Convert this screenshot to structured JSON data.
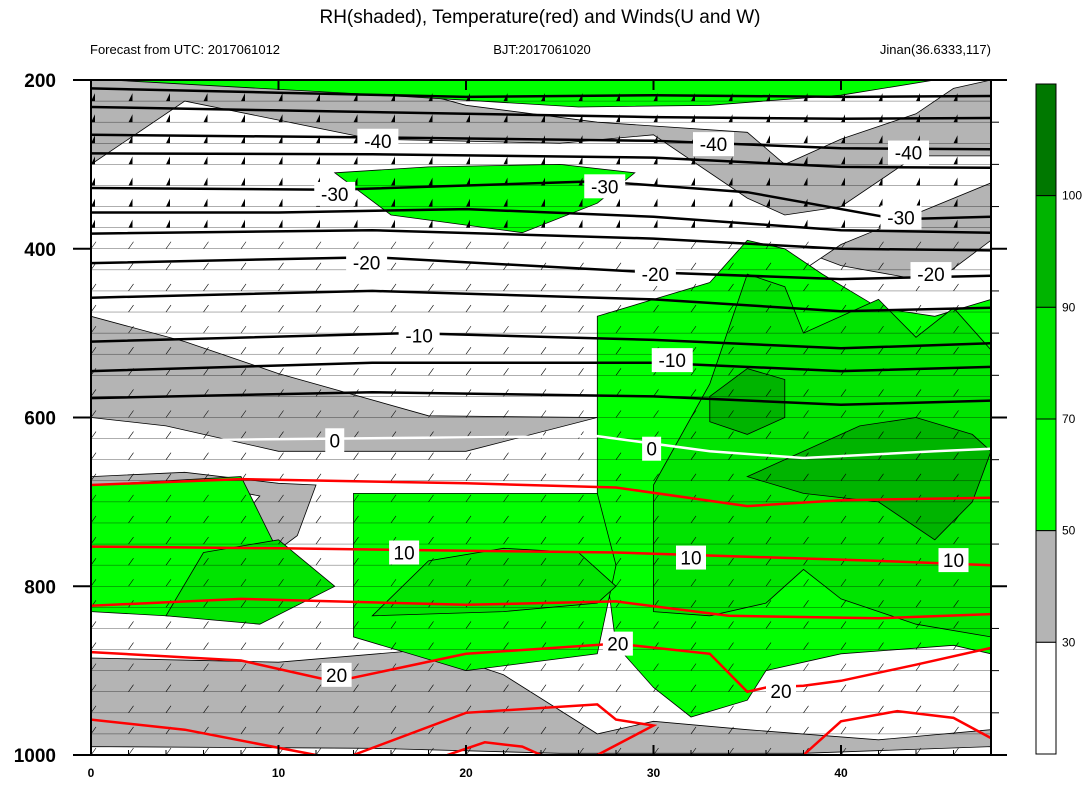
{
  "chart_data": {
    "type": "contour",
    "title": "RH(shaded), Temperature(red) and Winds(U and W)",
    "subtitle_left": "Forecast from UTC: 2017061012",
    "subtitle_center": "BJT:2017061020",
    "subtitle_right": "Jinan(36.6333,117)",
    "x_axis": {
      "range": [
        0,
        48
      ],
      "ticks": [
        0,
        10,
        20,
        30,
        40
      ]
    },
    "y_axis": {
      "range": [
        1000,
        200
      ],
      "ticks": [
        200,
        400,
        600,
        800,
        1000
      ],
      "reversed": true
    },
    "colorbar": {
      "labels": [
        30,
        50,
        70,
        90,
        100
      ],
      "levels": [
        {
          "label_value": null,
          "color": "#ffffff"
        },
        {
          "label_value": 30,
          "color": "#b4b4b4"
        },
        {
          "label_value": 50,
          "color": "#00ff00"
        },
        {
          "label_value": 70,
          "color": "#00e400"
        },
        {
          "label_value": 90,
          "color": "#00b400"
        },
        {
          "label_value": 100,
          "color": "#007800"
        }
      ]
    },
    "temperature_isotherm_labels": {
      "black": [
        {
          "text": "-40",
          "x": 15.3,
          "p": 272
        },
        {
          "text": "-40",
          "x": 33.2,
          "p": 276
        },
        {
          "text": "-40",
          "x": 43.6,
          "p": 286
        },
        {
          "text": "-30",
          "x": 13.0,
          "p": 335
        },
        {
          "text": "-30",
          "x": 27.4,
          "p": 326
        },
        {
          "text": "-30",
          "x": 43.2,
          "p": 363
        },
        {
          "text": "-20",
          "x": 14.7,
          "p": 416
        },
        {
          "text": "-20",
          "x": 30.1,
          "p": 430
        },
        {
          "text": "-20",
          "x": 44.8,
          "p": 430
        },
        {
          "text": "-10",
          "x": 17.5,
          "p": 503
        },
        {
          "text": "-10",
          "x": 31.0,
          "p": 532
        }
      ],
      "white": [
        {
          "text": "0",
          "x": 13.0,
          "p": 627
        },
        {
          "text": "0",
          "x": 29.9,
          "p": 637
        }
      ],
      "red": [
        {
          "text": "10",
          "x": 16.7,
          "p": 760
        },
        {
          "text": "10",
          "x": 32.0,
          "p": 766
        },
        {
          "text": "10",
          "x": 46.0,
          "p": 769
        },
        {
          "text": "20",
          "x": 13.1,
          "p": 905
        },
        {
          "text": "20",
          "x": 28.1,
          "p": 868
        },
        {
          "text": "20",
          "x": 36.8,
          "p": 924
        }
      ]
    },
    "isotherms": {
      "black": [
        [
          [
            0,
            210
          ],
          [
            10,
            215
          ],
          [
            20,
            220
          ],
          [
            30,
            218
          ],
          [
            40,
            220
          ],
          [
            48,
            219
          ]
        ],
        [
          [
            0,
            232
          ],
          [
            10,
            236
          ],
          [
            20,
            240
          ],
          [
            30,
            244
          ],
          [
            40,
            246
          ],
          [
            48,
            245
          ]
        ],
        [
          [
            0,
            265
          ],
          [
            15,
            268
          ],
          [
            30,
            272
          ],
          [
            40,
            281
          ],
          [
            48,
            282
          ]
        ],
        [
          [
            0,
            287
          ],
          [
            15,
            288
          ],
          [
            30,
            292
          ],
          [
            40,
            303
          ],
          [
            48,
            304
          ]
        ],
        [
          [
            0,
            328
          ],
          [
            13,
            330
          ],
          [
            27,
            320
          ],
          [
            35,
            333
          ],
          [
            43,
            365
          ],
          [
            48,
            362
          ]
        ],
        [
          [
            0,
            357
          ],
          [
            10,
            357
          ],
          [
            20,
            353
          ],
          [
            30,
            362
          ],
          [
            40,
            378
          ],
          [
            48,
            381
          ]
        ],
        [
          [
            0,
            382
          ],
          [
            15,
            378
          ],
          [
            30,
            388
          ],
          [
            40,
            400
          ],
          [
            48,
            402
          ]
        ],
        [
          [
            0,
            417
          ],
          [
            15,
            410
          ],
          [
            30,
            428
          ],
          [
            40,
            436
          ],
          [
            48,
            432
          ]
        ],
        [
          [
            0,
            458
          ],
          [
            15,
            450
          ],
          [
            30,
            460
          ],
          [
            40,
            474
          ],
          [
            48,
            470
          ]
        ],
        [
          [
            0,
            510
          ],
          [
            17,
            500
          ],
          [
            30,
            508
          ],
          [
            40,
            518
          ],
          [
            48,
            512
          ]
        ],
        [
          [
            0,
            545
          ],
          [
            15,
            535
          ],
          [
            30,
            535
          ],
          [
            40,
            545
          ],
          [
            48,
            540
          ]
        ],
        [
          [
            0,
            577
          ],
          [
            15,
            570
          ],
          [
            30,
            575
          ],
          [
            40,
            585
          ],
          [
            48,
            580
          ]
        ]
      ],
      "white": [
        [
          0,
          628
        ],
        [
          13,
          625
        ],
        [
          27,
          622
        ],
        [
          33,
          640
        ],
        [
          38,
          648
        ],
        [
          45,
          640
        ],
        [
          48,
          637
        ]
      ],
      "red": [
        [
          [
            0,
            680
          ],
          [
            8,
            673
          ],
          [
            20,
            678
          ],
          [
            28,
            683
          ],
          [
            35,
            705
          ],
          [
            40,
            698
          ],
          [
            48,
            695
          ]
        ],
        [
          [
            0,
            753
          ],
          [
            10,
            755
          ],
          [
            20,
            758
          ],
          [
            28,
            760
          ],
          [
            35,
            765
          ],
          [
            42,
            770
          ],
          [
            48,
            775
          ]
        ],
        [
          [
            0,
            823
          ],
          [
            8,
            815
          ],
          [
            20,
            822
          ],
          [
            28,
            818
          ],
          [
            34,
            835
          ],
          [
            42,
            838
          ],
          [
            48,
            833
          ]
        ],
        [
          [
            0,
            878
          ],
          [
            8,
            888
          ],
          [
            13,
            913
          ],
          [
            20,
            880
          ],
          [
            28,
            868
          ],
          [
            33,
            880
          ],
          [
            35,
            925
          ],
          [
            36,
            920
          ],
          [
            38,
            918
          ],
          [
            40,
            912
          ],
          [
            44,
            893
          ],
          [
            48,
            873
          ]
        ],
        [
          [
            0,
            958
          ],
          [
            5,
            970
          ],
          [
            12,
            1000
          ]
        ],
        [
          [
            14,
            1000
          ],
          [
            20,
            950
          ],
          [
            27,
            940
          ],
          [
            28,
            958
          ],
          [
            30,
            965
          ],
          [
            27,
            1000
          ]
        ],
        [
          [
            19,
            1000
          ],
          [
            21,
            985
          ],
          [
            23,
            990
          ],
          [
            24,
            1000
          ]
        ],
        [
          [
            38,
            1000
          ],
          [
            40,
            960
          ],
          [
            43,
            948
          ],
          [
            46,
            956
          ],
          [
            48,
            980
          ]
        ]
      ]
    },
    "rh_shading": {
      "light_gray_regions": [
        [
          [
            0,
            200
          ],
          [
            15,
            200
          ],
          [
            20,
            230
          ],
          [
            27,
            250
          ],
          [
            35,
            262
          ],
          [
            37,
            300
          ],
          [
            40,
            270
          ],
          [
            44,
            240
          ],
          [
            46,
            210
          ],
          [
            48,
            200
          ],
          [
            48,
            390
          ],
          [
            45,
            440
          ],
          [
            40,
            420
          ],
          [
            37,
            395
          ],
          [
            33,
            430
          ],
          [
            30,
            455
          ],
          [
            27,
            545
          ],
          [
            27,
            600
          ],
          [
            20,
            640
          ],
          [
            10,
            640
          ],
          [
            4,
            610
          ],
          [
            0,
            600
          ]
        ],
        [
          [
            0,
            670
          ],
          [
            5,
            665
          ],
          [
            10,
            678
          ],
          [
            12,
            680
          ],
          [
            11,
            740
          ],
          [
            8,
            790
          ],
          [
            5,
            810
          ],
          [
            0,
            808
          ]
        ],
        [
          [
            0,
            885
          ],
          [
            10,
            890
          ],
          [
            18,
            875
          ],
          [
            22,
            905
          ],
          [
            27,
            975
          ],
          [
            30,
            960
          ],
          [
            35,
            970
          ],
          [
            42,
            982
          ],
          [
            48,
            970
          ],
          [
            48,
            1000
          ],
          [
            0,
            1000
          ]
        ]
      ],
      "white_regions": [
        [
          [
            0,
            300
          ],
          [
            5,
            225
          ],
          [
            15,
            270
          ],
          [
            25,
            275
          ],
          [
            30,
            265
          ],
          [
            35,
            340
          ],
          [
            37,
            360
          ],
          [
            40,
            350
          ],
          [
            44,
            290
          ],
          [
            48,
            290
          ],
          [
            48,
            322
          ],
          [
            40,
            395
          ],
          [
            37,
            440
          ],
          [
            33,
            470
          ],
          [
            30,
            545
          ],
          [
            27,
            600
          ],
          [
            18,
            598
          ],
          [
            10,
            548
          ],
          [
            5,
            510
          ],
          [
            0,
            480
          ]
        ],
        [
          [
            2,
            686
          ],
          [
            6,
            680
          ],
          [
            9,
            693
          ],
          [
            7,
            745
          ],
          [
            4,
            770
          ],
          [
            1,
            765
          ]
        ],
        [
          [
            0,
            990
          ],
          [
            15,
            992
          ],
          [
            25,
            998
          ],
          [
            38,
            998
          ],
          [
            48,
            990
          ],
          [
            48,
            1000
          ],
          [
            0,
            1000
          ]
        ]
      ],
      "green_regions": [
        [
          [
            1,
            200
          ],
          [
            14,
            216
          ],
          [
            26,
            232
          ],
          [
            33,
            230
          ],
          [
            40,
            218
          ],
          [
            45,
            200
          ]
        ],
        [
          [
            13,
            310
          ],
          [
            18,
            303
          ],
          [
            25,
            300
          ],
          [
            29,
            310
          ],
          [
            27,
            346
          ],
          [
            23,
            381
          ],
          [
            16,
            360
          ]
        ],
        [
          [
            27,
            480
          ],
          [
            30,
            460
          ],
          [
            33,
            440
          ],
          [
            35,
            390
          ],
          [
            37,
            400
          ],
          [
            39,
            430
          ],
          [
            42,
            470
          ],
          [
            45,
            480
          ],
          [
            48,
            460
          ],
          [
            48,
            880
          ],
          [
            46,
            870
          ],
          [
            40,
            880
          ],
          [
            36,
            900
          ],
          [
            35,
            935
          ],
          [
            32,
            955
          ],
          [
            30,
            920
          ],
          [
            28,
            870
          ],
          [
            27,
            700
          ]
        ],
        [
          [
            0,
            680
          ],
          [
            8,
            670
          ],
          [
            10,
            760
          ],
          [
            8,
            840
          ],
          [
            0,
            830
          ]
        ],
        [
          [
            14,
            690
          ],
          [
            27,
            690
          ],
          [
            28,
            775
          ],
          [
            27,
            880
          ],
          [
            20,
            900
          ],
          [
            14,
            860
          ]
        ]
      ],
      "mid_green_regions": [
        [
          [
            30,
            680
          ],
          [
            33,
            560
          ],
          [
            35,
            430
          ],
          [
            37,
            445
          ],
          [
            38,
            500
          ],
          [
            42,
            460
          ],
          [
            44,
            505
          ],
          [
            46,
            470
          ],
          [
            48,
            520
          ],
          [
            48,
            860
          ],
          [
            44,
            845
          ],
          [
            40,
            815
          ],
          [
            38,
            780
          ],
          [
            36,
            820
          ],
          [
            33,
            835
          ],
          [
            30,
            830
          ]
        ],
        [
          [
            6,
            760
          ],
          [
            10,
            745
          ],
          [
            13,
            800
          ],
          [
            9,
            845
          ],
          [
            4,
            835
          ]
        ],
        [
          [
            15,
            835
          ],
          [
            18,
            770
          ],
          [
            22,
            755
          ],
          [
            26,
            760
          ],
          [
            28,
            800
          ],
          [
            27,
            820
          ],
          [
            22,
            830
          ]
        ]
      ],
      "dark_green_regions": [
        [
          [
            33,
            575
          ],
          [
            35,
            542
          ],
          [
            37,
            555
          ],
          [
            37,
            600
          ],
          [
            35,
            620
          ],
          [
            33,
            605
          ]
        ],
        [
          [
            35,
            670
          ],
          [
            38,
            640
          ],
          [
            41,
            610
          ],
          [
            44,
            600
          ],
          [
            47,
            620
          ],
          [
            48,
            640
          ],
          [
            47,
            700
          ],
          [
            45,
            745
          ],
          [
            42,
            700
          ],
          [
            38,
            690
          ]
        ]
      ]
    }
  }
}
